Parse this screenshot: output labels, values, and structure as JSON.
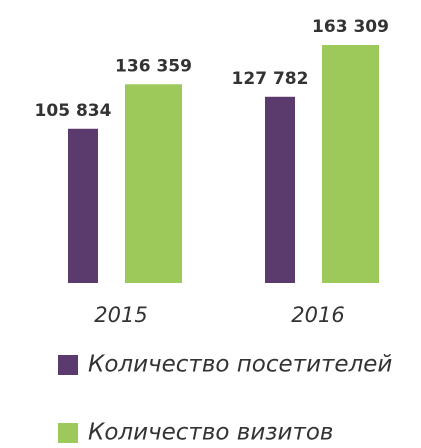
{
  "chart_data": {
    "type": "bar",
    "categories": [
      "2015",
      "2016"
    ],
    "series": [
      {
        "name": "Количество посетителей",
        "color": "#5b3a6e",
        "values": [
          105834,
          127782
        ],
        "value_labels": [
          "105 834",
          "127 782"
        ]
      },
      {
        "name": "Количество визитов",
        "color": "#9dc95b",
        "values": [
          136359,
          163309
        ],
        "value_labels": [
          "136 359",
          "163 309"
        ]
      }
    ]
  }
}
